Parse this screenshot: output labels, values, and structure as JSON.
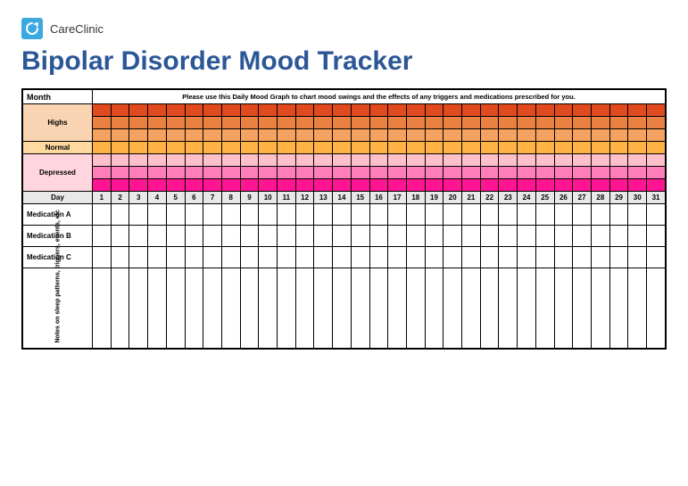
{
  "brand": {
    "name": "CareClinic"
  },
  "title": "Bipolar Disorder Mood Tracker",
  "sections": {
    "month_label": "Month",
    "instruction": "Please use this Daily Mood Graph to chart mood swings and the effects of any triggers and medications prescribed for you.",
    "highs_label": "Highs",
    "normal_label": "Normal",
    "depressed_label": "Depressed",
    "day_label": "Day",
    "medA_label": "Medication A",
    "medB_label": "Medication B",
    "medC_label": "Medication C",
    "notes_label": "Notes on sleep patterns, triggers, events, etc"
  },
  "mood_rows": {
    "highs": [
      {
        "color": "#e04a1f",
        "label_bg": "#f8d4b3"
      },
      {
        "color": "#ea8042",
        "label_bg": "#f8d4b3"
      },
      {
        "color": "#f4a261",
        "label_bg": "#f8d4b3"
      }
    ],
    "normal": {
      "color": "#ffb347",
      "label_bg": "#ffd9a0"
    },
    "depressed": [
      {
        "color": "#ffc0cb",
        "label_bg": "#ffd6e0"
      },
      {
        "color": "#ff7eb9",
        "label_bg": "#ffd6e0"
      },
      {
        "color": "#ff1493",
        "label_bg": "#ffd6e0"
      }
    ]
  },
  "days": [
    1,
    2,
    3,
    4,
    5,
    6,
    7,
    8,
    9,
    10,
    11,
    12,
    13,
    14,
    15,
    16,
    17,
    18,
    19,
    20,
    21,
    22,
    23,
    24,
    25,
    26,
    27,
    28,
    29,
    30,
    31
  ]
}
